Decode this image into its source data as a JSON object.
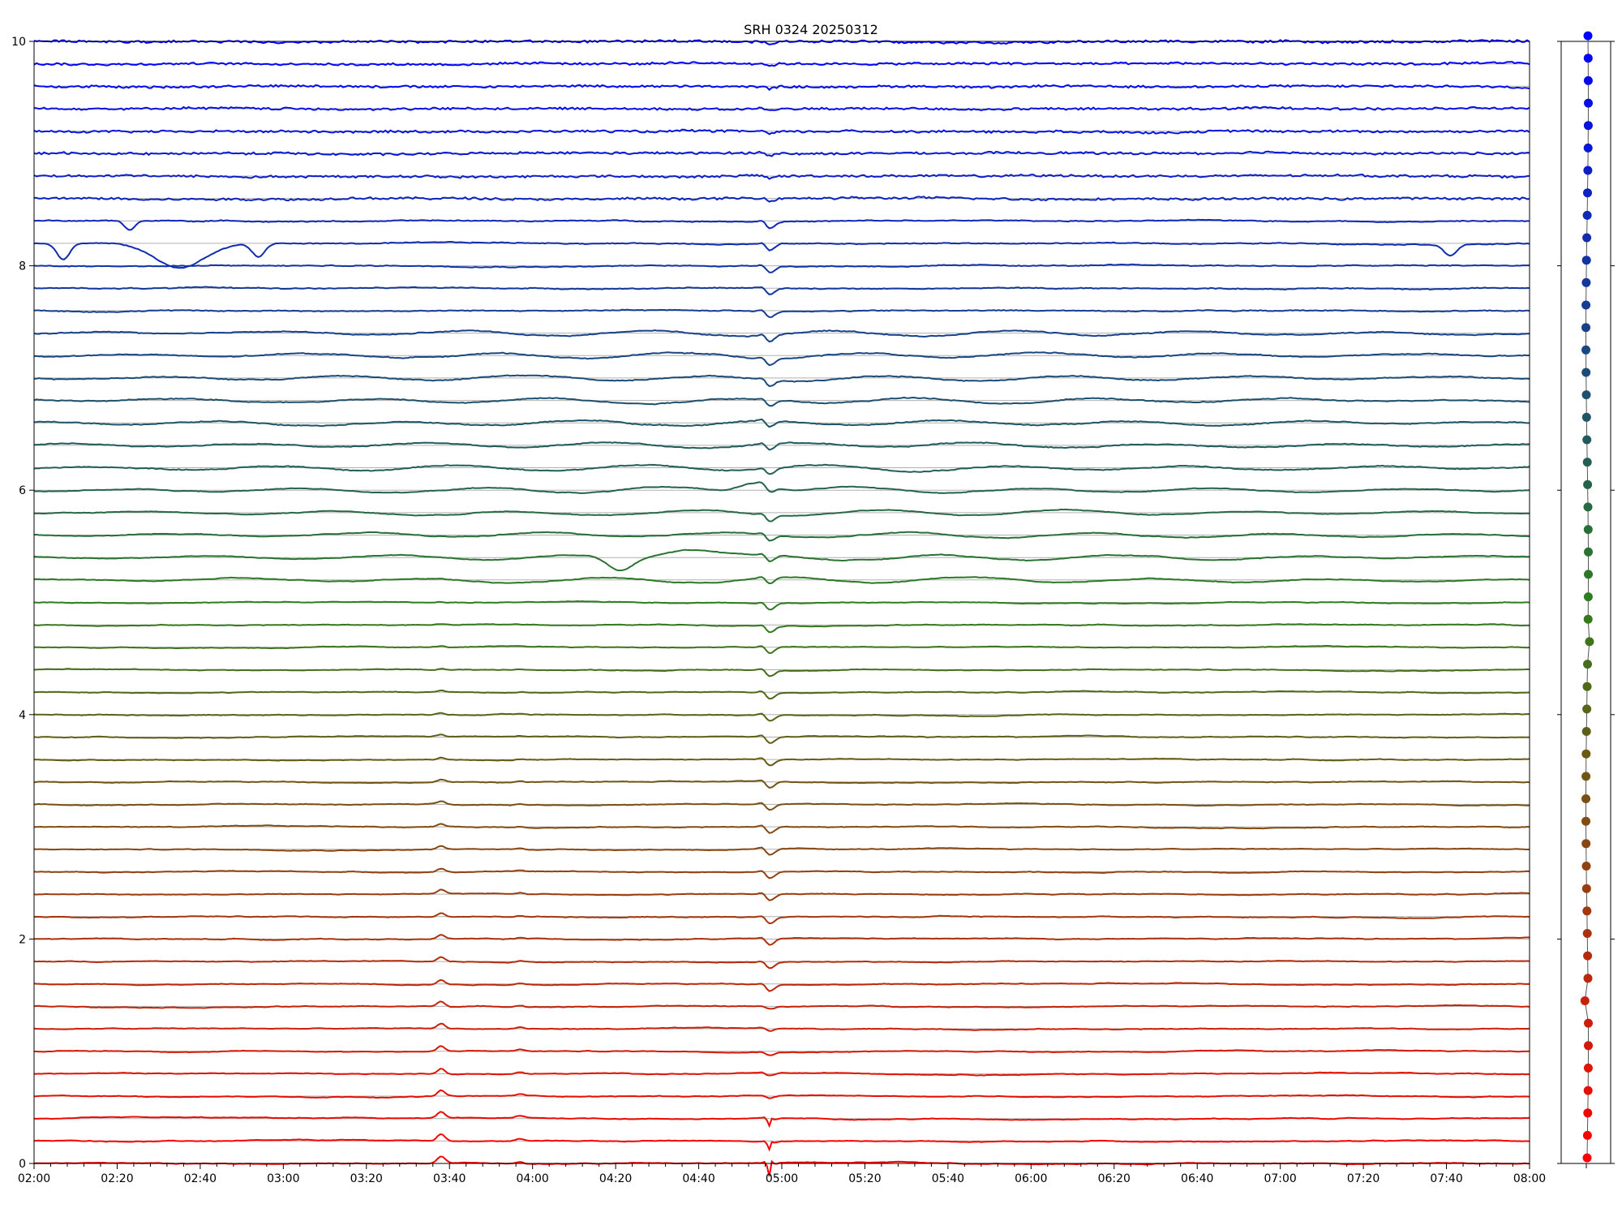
{
  "chart_data": {
    "type": "line",
    "title": "SRH 0324 20250312",
    "xlabel": "",
    "ylabel": "",
    "x_ticks": [
      "02:00",
      "02:20",
      "02:40",
      "03:00",
      "03:20",
      "03:40",
      "04:00",
      "04:20",
      "04:40",
      "05:00",
      "05:20",
      "05:40",
      "06:00",
      "06:20",
      "06:40",
      "07:00",
      "07:20",
      "07:40",
      "08:00"
    ],
    "xlim": [
      "02:00",
      "08:00"
    ],
    "y_ticks": [
      "0",
      "2",
      "4",
      "6",
      "8",
      "10"
    ],
    "ylim": [
      0,
      10
    ],
    "grid": "horizontal",
    "series_count": 51,
    "channel_spacing": 0.2,
    "color_gradient": [
      "#ff0000",
      "#2e7d1e",
      "#0000ff"
    ],
    "flare_time": "04:57",
    "secondary_peak_time": "03:38",
    "tertiary_peak_time": "03:57",
    "right_panel": {
      "type": "scatter",
      "markers": "dots",
      "count": 51
    }
  }
}
